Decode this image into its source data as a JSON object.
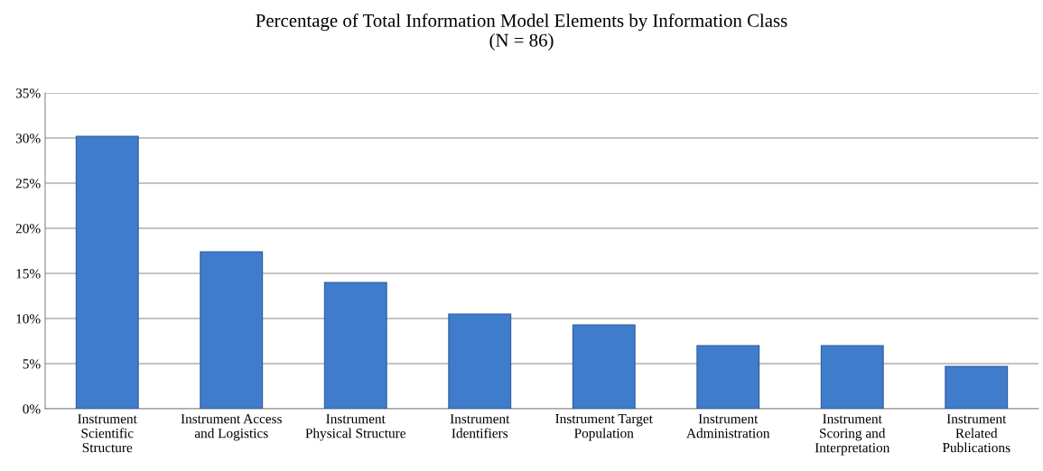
{
  "chart_data": {
    "type": "bar",
    "title": "Percentage of Total Information Model Elements by Information Class\n(N = 86)",
    "categories": [
      "Instrument\nScientific\nStructure",
      "Instrument Access\nand Logistics",
      "Instrument\nPhysical Structure",
      "Instrument\nIdentifiers",
      "Instrument Target\nPopulation",
      "Instrument\nAdministration",
      "Instrument\nScoring and\nInterpretation",
      "Instrument\nRelated\nPublications"
    ],
    "values": [
      30.2,
      17.4,
      14.0,
      10.5,
      9.3,
      7.0,
      7.0,
      4.7
    ],
    "color": "#3f7ccb",
    "ylim": [
      0,
      35
    ],
    "yticks": [
      {
        "value": 0,
        "label": "0%"
      },
      {
        "value": 5,
        "label": "5%"
      },
      {
        "value": 10,
        "label": "10%"
      },
      {
        "value": 15,
        "label": "15%"
      },
      {
        "value": 20,
        "label": "20%"
      },
      {
        "value": 25,
        "label": "25%"
      },
      {
        "value": 30,
        "label": "30%"
      },
      {
        "value": 35,
        "label": "35%"
      }
    ],
    "grid": "y",
    "legend": false
  }
}
